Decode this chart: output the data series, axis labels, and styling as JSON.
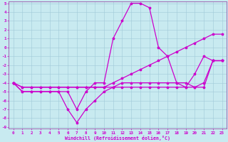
{
  "xlabel": "Windchill (Refroidissement éolien,°C)",
  "background_color": "#c8eaf0",
  "grid_color": "#a0c8d8",
  "line_color": "#cc00cc",
  "spine_color": "#9955aa",
  "ylim": [
    -9,
    5
  ],
  "xlim": [
    -0.5,
    23.5
  ],
  "yticks": [
    5,
    4,
    3,
    2,
    1,
    0,
    -1,
    -2,
    -3,
    -4,
    -5,
    -6,
    -7,
    -8,
    -9
  ],
  "xticks": [
    0,
    1,
    2,
    3,
    4,
    5,
    6,
    7,
    8,
    9,
    10,
    11,
    12,
    13,
    14,
    15,
    16,
    17,
    18,
    19,
    20,
    21,
    22,
    23
  ],
  "line1": [
    -4,
    -5,
    -5,
    -5,
    -5,
    -5,
    -5,
    -7,
    -5,
    -4,
    -4,
    1,
    3,
    5,
    5,
    4.5,
    0,
    -1,
    -4,
    -4.5,
    -3,
    -1,
    -1.5,
    -1.5
  ],
  "line2": [
    -4,
    -5,
    -5,
    -5,
    -5,
    -5,
    -7,
    -8.5,
    -7,
    -6,
    -5,
    -4.5,
    -4,
    -4,
    -4,
    -4,
    -4,
    -4,
    -4,
    -4,
    -4.5,
    -4,
    -1.5,
    -1.5
  ],
  "line3": [
    -4,
    -4.5,
    -4.5,
    -4.5,
    -4.5,
    -4.5,
    -4.5,
    -4.5,
    -4.5,
    -4.5,
    -4.5,
    -4,
    -3.5,
    -3,
    -2.5,
    -2,
    -1.5,
    -1,
    -0.5,
    0,
    0.5,
    1,
    1.5,
    1.5
  ],
  "line4": [
    -4,
    -4.5,
    -4.5,
    -4.5,
    -4.5,
    -4.5,
    -4.5,
    -4.5,
    -4.5,
    -4.5,
    -4.5,
    -4.5,
    -4.5,
    -4.5,
    -4.5,
    -4.5,
    -4.5,
    -4.5,
    -4.5,
    -4.5,
    -4.5,
    -4.5,
    -1.5,
    -1.5
  ],
  "tick_fontsize": 4.2,
  "label_fontsize": 4.8,
  "linewidth": 0.9,
  "markersize": 2.5
}
